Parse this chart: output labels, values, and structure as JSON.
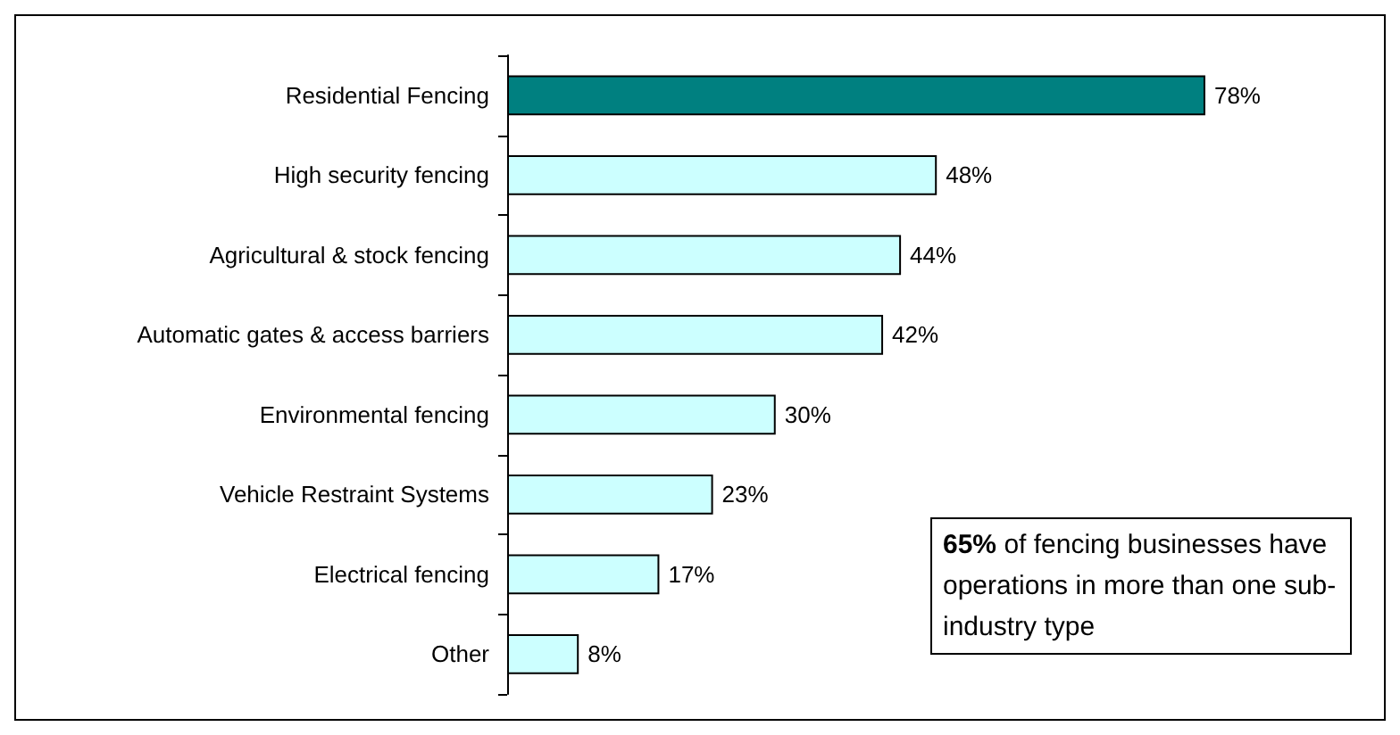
{
  "chart_data": {
    "type": "bar",
    "orientation": "horizontal",
    "categories": [
      "Residential Fencing",
      "High security fencing",
      "Agricultural & stock fencing",
      "Automatic gates & access barriers",
      "Environmental fencing",
      "Vehicle Restraint Systems",
      "Electrical fencing",
      "Other"
    ],
    "values": [
      78,
      48,
      44,
      42,
      30,
      23,
      17,
      8
    ],
    "colors": [
      "#008080",
      "#ccffff",
      "#ccffff",
      "#ccffff",
      "#ccffff",
      "#ccffff",
      "#ccffff",
      "#ccffff"
    ],
    "value_labels": [
      "78%",
      "48%",
      "44%",
      "42%",
      "30%",
      "23%",
      "17%",
      "8%"
    ],
    "annotations": [
      "65% of fencing businesses have operations in more than one sub-industry type"
    ],
    "tick_labels": "y"
  }
}
